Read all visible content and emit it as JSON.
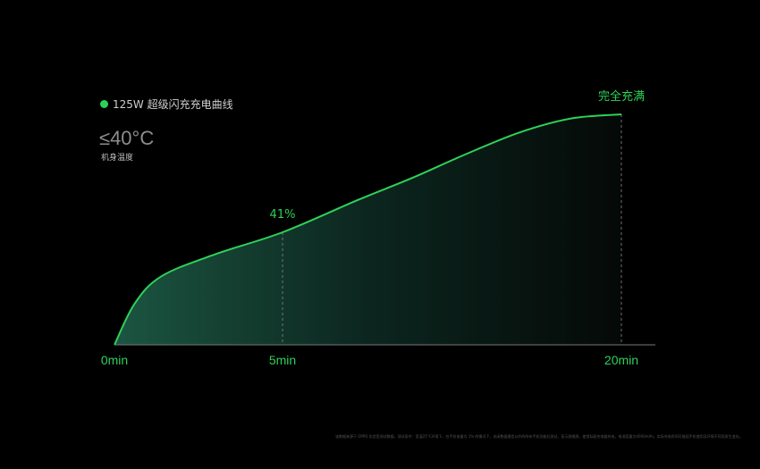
{
  "legend": {
    "label": "125W 超级闪充充电曲线",
    "color": "#2ed158"
  },
  "temperature": {
    "value": "≤40°C",
    "label": "机身温度"
  },
  "footnote": "该数据来源于 OPPO 实验室测试数据，测试条件：室温25°C环境下，在手机电量为 1% 的情况下，关闭数据通信以外的所有手机功能后测试，显示屏熄屏，使用标配充电器充电，电池容量为4000mAh。实际充电时间可能因手机使用及环境不同而发生变化。",
  "chart_data": {
    "type": "area",
    "title": "",
    "xlabel": "",
    "ylabel": "",
    "x_ticks": [
      {
        "value": 0,
        "label": "0min"
      },
      {
        "value": 5,
        "label": "5min"
      },
      {
        "value": 20,
        "label": "20min"
      }
    ],
    "annotations": [
      {
        "x": 5,
        "y": 41,
        "label": "41%"
      },
      {
        "x": 20,
        "y": 100,
        "label": "完全充满"
      }
    ],
    "series": [
      {
        "color": "#2ed158",
        "points": [
          [
            0,
            0
          ],
          [
            0.6,
            15
          ],
          [
            1.4,
            25
          ],
          [
            3,
            33
          ],
          [
            5,
            41
          ],
          [
            8.3,
            57
          ],
          [
            10.7,
            68
          ],
          [
            13.1,
            80
          ],
          [
            15.5,
            91
          ],
          [
            17.8,
            98
          ],
          [
            20,
            100
          ]
        ]
      }
    ],
    "grid": false
  }
}
